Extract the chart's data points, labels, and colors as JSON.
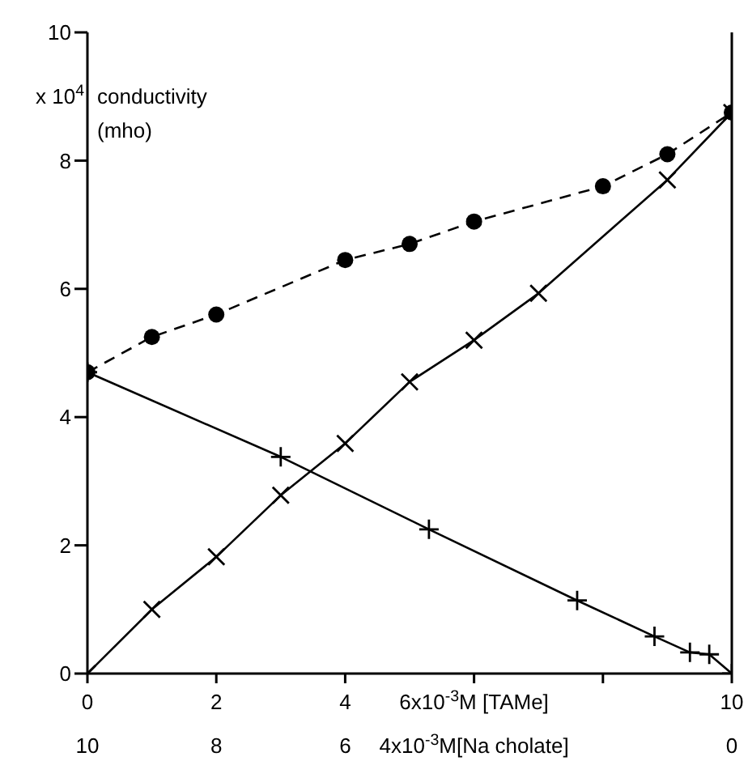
{
  "chart_data": {
    "type": "line",
    "ylabel": "conductivity (mho)",
    "annotations": [
      "x 10$^{4}$"
    ],
    "xlim": [
      0,
      10
    ],
    "xticks": [
      0,
      2,
      4,
      {
        "value": 6,
        "label": "6x10$^{-3}$M [TAMe]"
      },
      {
        "value": 8,
        "label": null
      },
      10
    ],
    "x2lim": [
      10,
      0
    ],
    "x2ticks": [
      10,
      8,
      6,
      {
        "value": 4,
        "label": "4x10$^{-3}$M[Na cholate]"
      },
      {
        "value": 2,
        "label": null
      },
      0
    ],
    "ylim": [
      0,
      10
    ],
    "yticks": [
      0,
      2,
      4,
      6,
      8,
      10
    ],
    "series": [
      {
        "color": "#000000",
        "marker": "circle",
        "line_style": "dashed",
        "x": [
          0,
          1,
          2,
          4,
          5,
          6,
          8,
          9,
          10
        ],
        "values": [
          4.7,
          5.25,
          5.6,
          6.45,
          6.7,
          7.05,
          7.6,
          8.1,
          8.75
        ]
      },
      {
        "color": "#000000",
        "marker": "cross",
        "line_style": "solid",
        "x": [
          0,
          1,
          2,
          3,
          4,
          5,
          6,
          7,
          9,
          10
        ],
        "values": [
          0,
          1.0,
          1.82,
          2.78,
          3.59,
          4.55,
          5.2,
          5.93,
          7.7,
          8.75
        ]
      },
      {
        "color": "#000000",
        "marker": "plus",
        "line_style": "solid",
        "x": [
          0,
          3,
          5.3,
          7.6,
          8.8,
          9.35,
          9.65,
          10
        ],
        "values": [
          4.7,
          3.38,
          2.25,
          1.14,
          0.58,
          0.33,
          0.3,
          0
        ]
      }
    ]
  }
}
